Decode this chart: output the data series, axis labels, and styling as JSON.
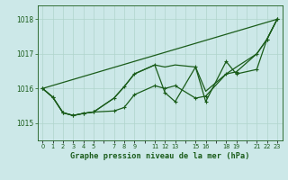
{
  "title": "Graphe pression niveau de la mer (hPa)",
  "bg_color": "#cce8e8",
  "grid_color": "#b0d4cc",
  "line_color": "#1a5c1a",
  "ylim": [
    1014.5,
    1018.4
  ],
  "yticks": [
    1015,
    1016,
    1017,
    1018
  ],
  "xlim": [
    -0.5,
    23.5
  ],
  "xtick_positions": [
    0,
    1,
    2,
    3,
    4,
    5,
    6,
    7,
    8,
    9,
    10,
    11,
    12,
    13,
    14,
    15,
    16,
    17,
    18,
    19,
    20,
    21,
    22,
    23
  ],
  "xtick_labels": [
    "0",
    "1",
    "2",
    "3",
    "4",
    "5",
    "",
    "7",
    "8",
    "9",
    "",
    "11",
    "12",
    "13",
    "",
    "15",
    "16",
    "",
    "18",
    "19",
    "",
    "21",
    "22",
    "23"
  ],
  "series_straight": {
    "x": [
      0,
      23
    ],
    "y": [
      1016.0,
      1018.0
    ]
  },
  "series_smooth1": {
    "x": [
      0,
      1,
      2,
      3,
      4,
      5,
      7,
      8,
      9,
      11,
      12,
      13,
      15,
      16,
      18,
      19,
      21,
      22,
      23
    ],
    "y": [
      1016.0,
      1015.75,
      1015.3,
      1015.22,
      1015.28,
      1015.32,
      1015.35,
      1015.45,
      1015.82,
      1016.08,
      1016.0,
      1016.08,
      1015.72,
      1015.78,
      1016.42,
      1016.48,
      1017.0,
      1017.42,
      1018.0
    ]
  },
  "series_smooth2": {
    "x": [
      0,
      1,
      2,
      3,
      4,
      5,
      7,
      8,
      9,
      11,
      12,
      13,
      15,
      16,
      18,
      19,
      21,
      22,
      23
    ],
    "y": [
      1016.0,
      1015.75,
      1015.3,
      1015.22,
      1015.28,
      1015.32,
      1015.72,
      1016.05,
      1016.42,
      1016.68,
      1016.62,
      1016.68,
      1016.62,
      1015.92,
      1016.42,
      1016.62,
      1017.0,
      1017.42,
      1018.0
    ]
  },
  "series_zigzag": {
    "x": [
      0,
      1,
      2,
      3,
      4,
      5,
      7,
      8,
      9,
      11,
      12,
      13,
      15,
      16,
      18,
      19,
      21,
      22,
      23
    ],
    "y": [
      1016.0,
      1015.75,
      1015.3,
      1015.22,
      1015.28,
      1015.32,
      1015.72,
      1016.05,
      1016.42,
      1016.68,
      1015.88,
      1015.62,
      1016.62,
      1015.62,
      1016.78,
      1016.42,
      1016.55,
      1017.42,
      1018.0
    ]
  }
}
